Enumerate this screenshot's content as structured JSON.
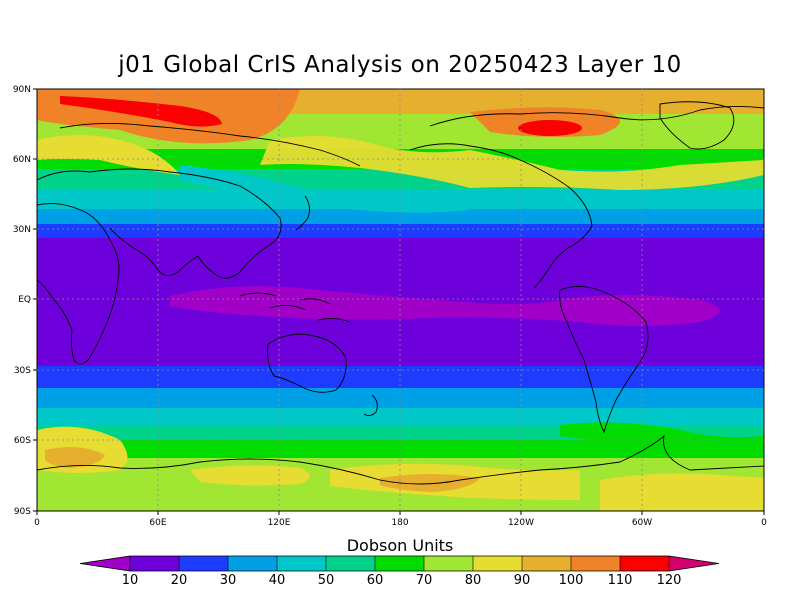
{
  "map": {
    "title": "j01 Global CrIS Analysis on 20250423 Layer 10",
    "y_axis_labels": [
      "90N",
      "60N",
      "30N",
      "EQ",
      "30S",
      "60S",
      "90S"
    ],
    "x_axis_labels": [
      "0",
      "60E",
      "120E",
      "180",
      "120W",
      "60W",
      "0"
    ],
    "colorbar": {
      "title": "Dobson Units",
      "tick_labels": [
        "10",
        "20",
        "30",
        "40",
        "50",
        "60",
        "70",
        "80",
        "90",
        "100",
        "110",
        "120"
      ],
      "colors": [
        "#a000c8",
        "#6e00dc",
        "#1e3cff",
        "#00a0e6",
        "#00c8c8",
        "#00d28c",
        "#00dc00",
        "#a0e632",
        "#e6dc32",
        "#e6af2d",
        "#f08228",
        "#fa0000",
        "#d2006e"
      ]
    },
    "value_range_du": [
      10,
      120
    ],
    "grid": "dotted, 30 degree lat / 60 degree lon",
    "bands_by_latitude": [
      {
        "lat_range": "90N-70N",
        "dominant_du": 100,
        "max_du": 120
      },
      {
        "lat_range": "70N-45N",
        "dominant_du": 80
      },
      {
        "lat_range": "45N-30N",
        "dominant_du": 40
      },
      {
        "lat_range": "30N-30S",
        "dominant_du": 20,
        "min_du": 10
      },
      {
        "lat_range": "30S-50S",
        "dominant_du": 40
      },
      {
        "lat_range": "50S-70S",
        "dominant_du": 70
      },
      {
        "lat_range": "70S-90S",
        "dominant_du": 80
      }
    ]
  }
}
